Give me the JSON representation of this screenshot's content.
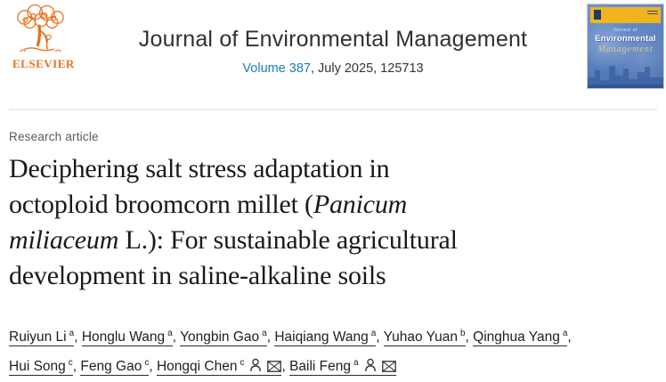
{
  "colors": {
    "accent_link_blue": "#1c7db5",
    "elsevier_orange": "#e9711c",
    "cover_blue": "#5b82c2",
    "cover_yellow": "#f0b41c",
    "title_text": "#191919",
    "divider_gray": "#ebebeb"
  },
  "header": {
    "publisher_label": "ELSEVIER",
    "journal_title": "Journal of Environmental Management",
    "volume_link_label": "Volume 387",
    "issue_suffix": ", July 2025, 125713"
  },
  "cover": {
    "top_label": "Journal of",
    "title_line1": "Environmental",
    "title_line2": "Management"
  },
  "article": {
    "type_label": "Research article",
    "title_lines": [
      [
        {
          "text": "Deciphering salt stress adaptation in"
        }
      ],
      [
        {
          "text": "octoploid broomcorn millet ("
        },
        {
          "text": "Panicum",
          "italic": true
        }
      ],
      [
        {
          "text": "miliaceum",
          "italic": true
        },
        {
          "text": " L.): For sustainable agricultural"
        }
      ],
      [
        {
          "text": "development in saline-alkaline soils"
        }
      ]
    ]
  },
  "authors": {
    "separator": ", ",
    "list": [
      {
        "name": "Ruiyun Li",
        "affiliation_sup": "a"
      },
      {
        "name": "Honglu Wang",
        "affiliation_sup": "a"
      },
      {
        "name": "Yongbin Gao",
        "affiliation_sup": "a"
      },
      {
        "name": "Haiqiang Wang",
        "affiliation_sup": "a"
      },
      {
        "name": "Yuhao Yuan",
        "affiliation_sup": "b"
      },
      {
        "name": "Qinghua Yang",
        "affiliation_sup": "a",
        "break_after": true
      },
      {
        "name": "Hui Song",
        "affiliation_sup": "c"
      },
      {
        "name": "Feng Gao",
        "affiliation_sup": "c"
      },
      {
        "name": "Hongqi Chen",
        "affiliation_sup": "c",
        "has_person_icon": true,
        "has_email_icon": true
      },
      {
        "name": "Baili Feng",
        "affiliation_sup": "a",
        "has_person_icon": true,
        "has_email_icon": true
      }
    ]
  }
}
